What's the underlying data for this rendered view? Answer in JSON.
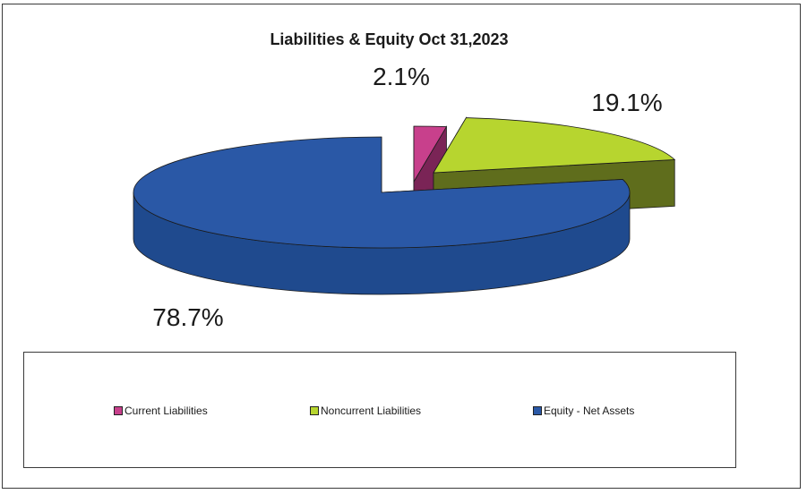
{
  "chart_data": {
    "type": "pie",
    "title": "Liabilities & Equity Oct 31,2023",
    "slices": [
      {
        "label": "Current Liabilities",
        "value": 2.1,
        "display": "2.1%",
        "color": "#c8408c",
        "side_color": "#7a2456"
      },
      {
        "label": "Noncurrent Liabilities",
        "value": 19.1,
        "display": "19.1%",
        "color": "#b7d52f",
        "side_color": "#5f6d1c"
      },
      {
        "label": "Equity - Net Assets",
        "value": 78.7,
        "display": "78.7%",
        "color": "#2a58a6",
        "side_color": "#1f4a8e"
      }
    ],
    "legend_position": "bottom",
    "style": "3d-exploded"
  }
}
